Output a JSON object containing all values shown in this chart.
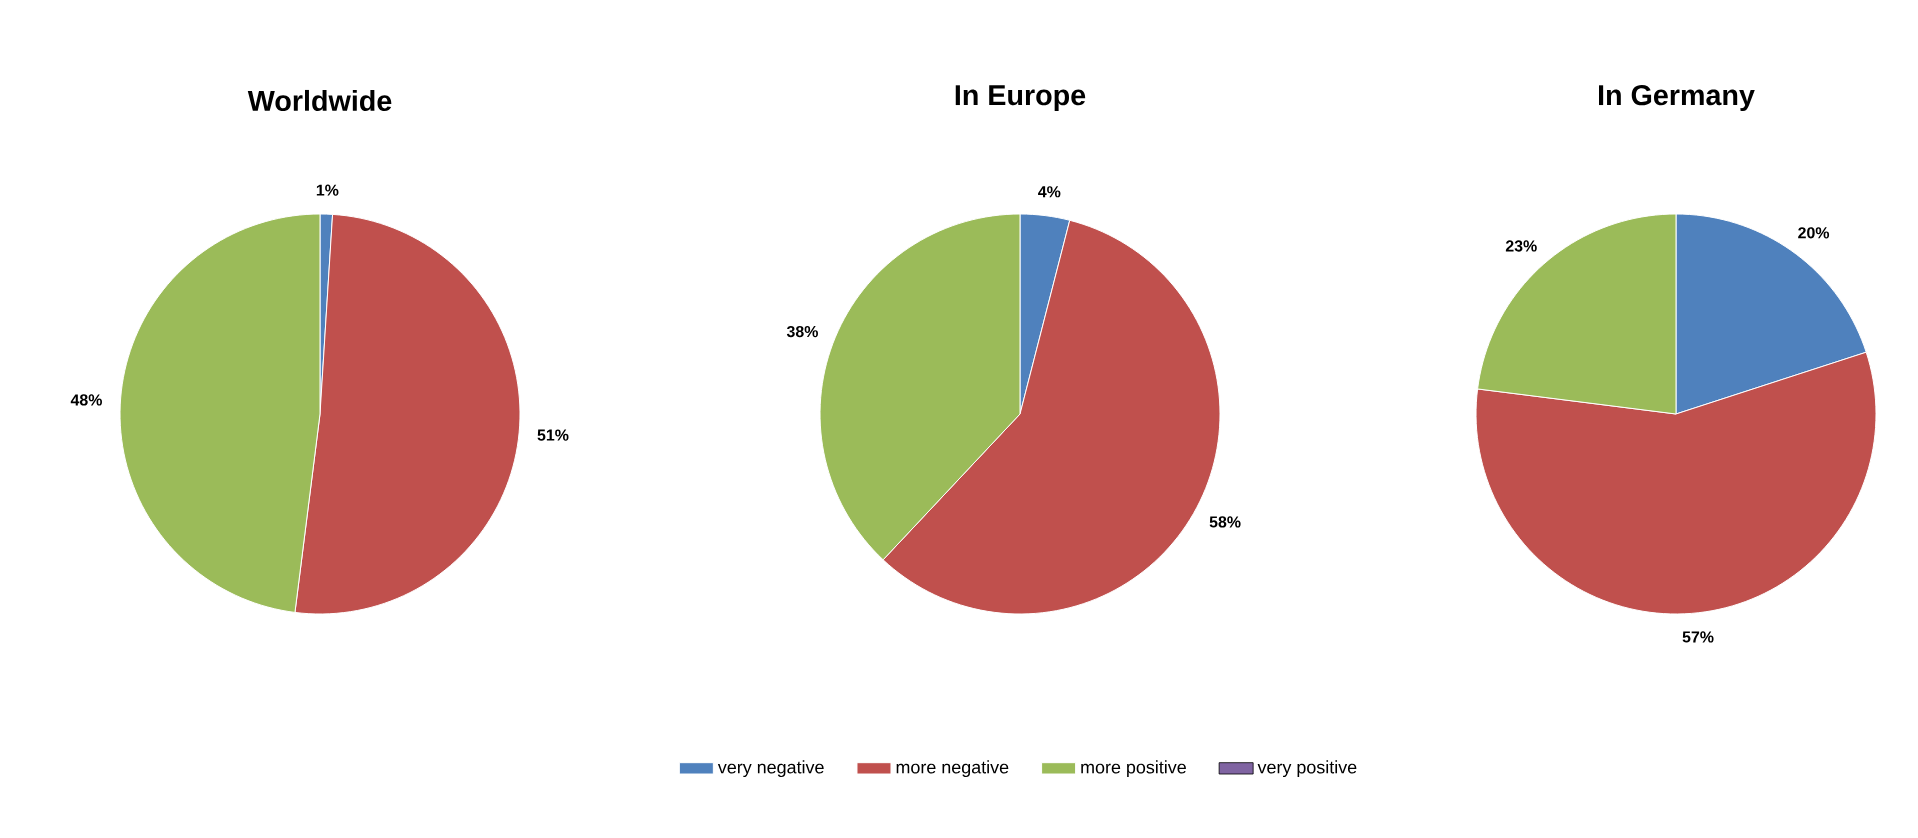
{
  "chart_data": [
    {
      "type": "pie",
      "title": "Worldwide",
      "categories": [
        null,
        null,
        null,
        null
      ],
      "values": [
        1,
        51,
        48,
        0
      ],
      "colors": [
        "#4f81bd",
        "#c0504d",
        "#9bbb59",
        "#8064a2"
      ],
      "value_labels": [
        "1%",
        "51%",
        "48%",
        null
      ]
    },
    {
      "type": "pie",
      "title": "In Europe",
      "categories": [
        "very negative",
        "more negative",
        "more positive",
        "very positive"
      ],
      "values": [
        4,
        58,
        38,
        0
      ],
      "colors": [
        "#4f81bd",
        "#c0504d",
        "#9bbb59",
        "#8064a2"
      ],
      "value_labels": [
        "4%",
        "58%",
        "38%",
        null
      ],
      "legend": "bottom"
    },
    {
      "type": "pie",
      "title": "In Germany",
      "categories": [
        null,
        null,
        null,
        null
      ],
      "values": [
        20,
        57,
        23,
        0
      ],
      "colors": [
        "#4f81bd",
        "#c0504d",
        "#9bbb59",
        "#8064a2"
      ],
      "value_labels": [
        "20%",
        "57%",
        "23%",
        null
      ]
    }
  ]
}
